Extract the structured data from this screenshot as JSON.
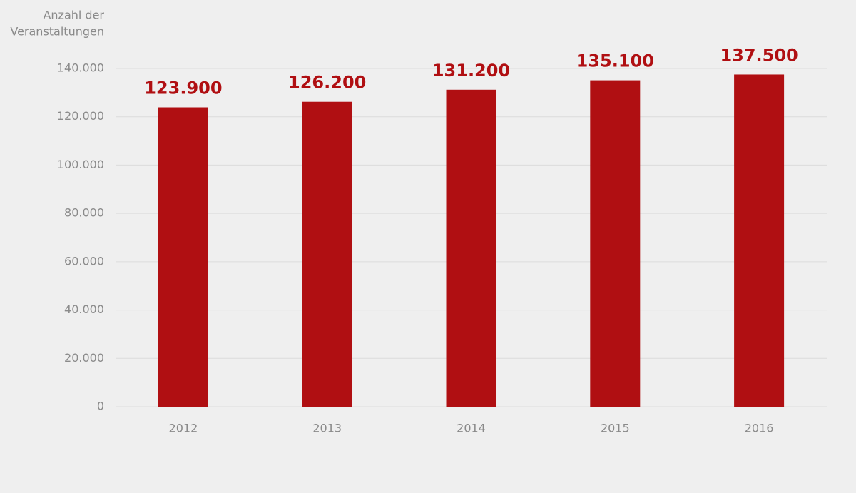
{
  "chart_data": {
    "type": "bar",
    "ylabel": [
      "Anzahl der",
      "Veranstaltungen"
    ],
    "categories": [
      "2012",
      "2013",
      "2014",
      "2015",
      "2016"
    ],
    "values": [
      123900,
      126200,
      131200,
      135100,
      137500
    ],
    "value_labels": [
      "123.900",
      "126.200",
      "131.200",
      "135.100",
      "137.500"
    ],
    "color": "#b00f12",
    "ylim": [
      0,
      140000
    ],
    "yticks": [
      0,
      {
        "value": 20000,
        "label": "20.000"
      },
      {
        "value": 40000,
        "label": "40.000"
      },
      {
        "value": 60000,
        "label": "60.000"
      },
      {
        "value": 80000,
        "label": "80.000"
      },
      {
        "value": 100000,
        "label": "100.000"
      },
      {
        "value": 120000,
        "label": "120.000"
      },
      {
        "value": 140000,
        "label": "140.000"
      }
    ],
    "grid": true
  }
}
